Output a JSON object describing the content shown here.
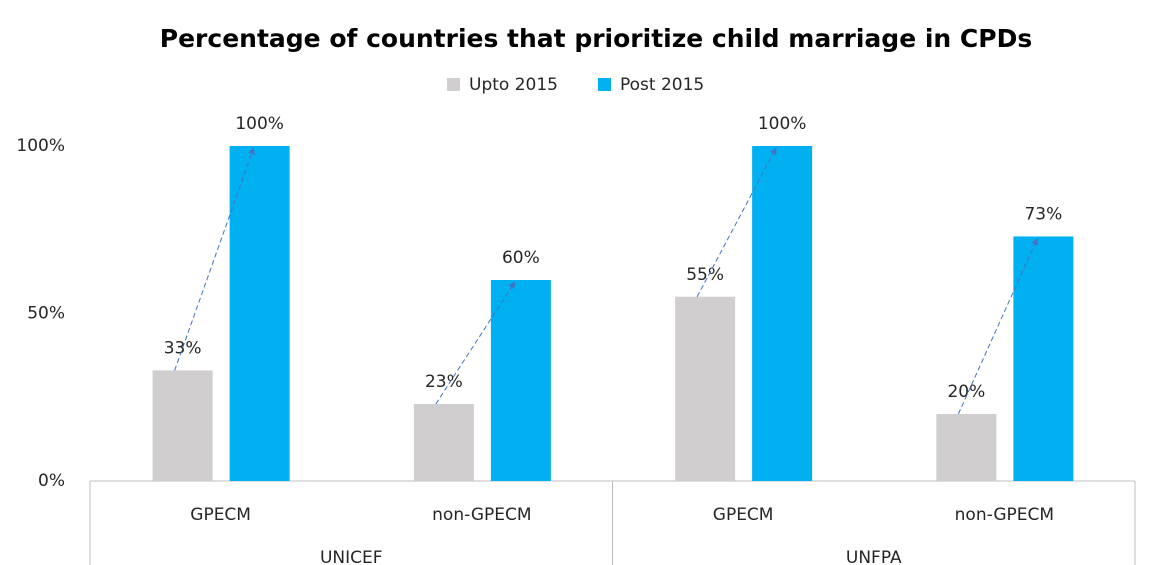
{
  "chart_data": {
    "type": "bar",
    "title": "Percentage of countries that prioritize child marriage in CPDs",
    "categories": [
      "GPECM",
      "non-GPECM",
      "GPECM",
      "non-GPECM"
    ],
    "groups": [
      "UNICEF",
      "UNFPA"
    ],
    "series": [
      {
        "name": "Upto 2015",
        "color": "#d0cece",
        "values": [
          33,
          23,
          55,
          20
        ],
        "value_labels": [
          "33%",
          "23%",
          "55%",
          "20%"
        ]
      },
      {
        "name": "Post 2015",
        "color": "#00b0f0",
        "values": [
          100,
          60,
          100,
          73
        ],
        "value_labels": [
          "100%",
          "60%",
          "100%",
          "73%"
        ]
      }
    ],
    "ylim": [
      0,
      100
    ],
    "yticks": [
      {
        "value": 0,
        "label": "0%"
      },
      {
        "value": 50,
        "label": "50%"
      },
      {
        "value": 100,
        "label": "100%"
      }
    ],
    "grid": false,
    "legend": "top"
  }
}
